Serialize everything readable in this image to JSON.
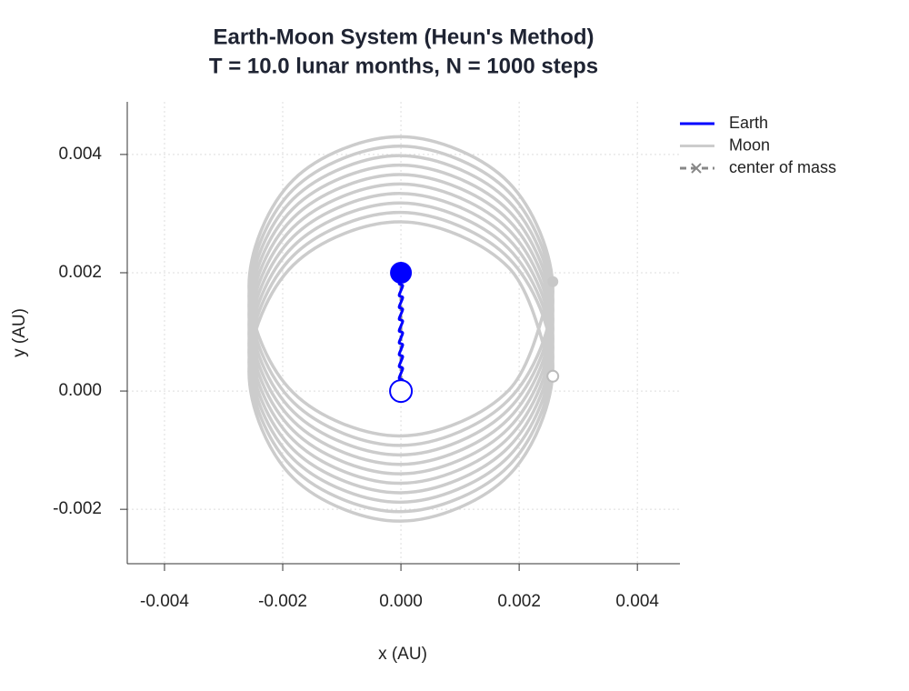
{
  "chart_data": {
    "type": "line",
    "title": "Earth-Moon System (Heun's Method)",
    "subtitle": "T = 10.0 lunar months, N = 1000 steps",
    "x_label": "x (AU)",
    "y_label": "y (AU)",
    "xlim": [
      -0.00463,
      0.00472
    ],
    "ylim": [
      -0.00292,
      0.00489
    ],
    "xticks": [
      -0.004,
      -0.002,
      {
        "value": 0,
        "label": "0.000"
      },
      0.002,
      0.004
    ],
    "yticks": [
      -0.002,
      {
        "value": 0,
        "label": "0.000"
      },
      0.002,
      0.004
    ],
    "grid": true,
    "legend": "upper right",
    "aspect": "equal",
    "series": [
      {
        "name": "Earth",
        "color": "#0000ff",
        "x": [
          0,
          -3e-05,
          0,
          3e-05,
          0,
          -3e-05,
          0,
          3e-05,
          0,
          -3e-05,
          0,
          3e-05,
          0,
          -3e-05,
          0,
          3e-05,
          0,
          -3e-05,
          0,
          3e-05,
          0,
          -3e-05,
          0,
          3e-05,
          0,
          -3e-05,
          0,
          3e-05,
          0,
          -3e-05,
          0,
          3e-05,
          0,
          -3e-05,
          0,
          3e-05,
          0,
          -3e-05,
          0,
          3e-05,
          0
        ],
        "y": [
          0,
          2e-05,
          0.0001,
          0.00018,
          0.0002,
          0.00022,
          0.0003,
          0.00038,
          0.0004,
          0.00042,
          0.0005,
          0.00058,
          0.0006,
          0.00062,
          0.0007,
          0.00078,
          0.0008,
          0.00082,
          0.0009,
          0.00098,
          0.001,
          0.00102,
          0.0011,
          0.00118,
          0.0012,
          0.00122,
          0.0013,
          0.00138,
          0.0014,
          0.00142,
          0.0015,
          0.00158,
          0.0016,
          0.00162,
          0.0017,
          0.00178,
          0.0018,
          0.00182,
          0.0019,
          0.00198,
          0.002
        ]
      },
      {
        "name": "Moon",
        "color": "#cccccc",
        "x": [
          0.00257,
          0.00182,
          0,
          -0.00182,
          -0.00257,
          -0.00182,
          0,
          0.00182,
          0.00257,
          0.00182,
          0,
          -0.00182,
          -0.00257,
          -0.00182,
          0,
          0.00182,
          0.00257,
          0.00182,
          0,
          -0.00182,
          -0.00257,
          -0.00182,
          0,
          0.00182,
          0.00257,
          0.00182,
          0,
          -0.00182,
          -0.00257,
          -0.00182,
          0,
          0.00182,
          0.00257,
          0.00182,
          0,
          -0.00182,
          -0.00257,
          -0.00182,
          0,
          0.00182,
          0.00257,
          0.00182,
          0,
          -0.00182,
          -0.00257,
          -0.00182,
          0,
          0.00182,
          0.00257,
          0.00182,
          0,
          -0.00182,
          -0.00257,
          -0.00182,
          0,
          0.00182,
          0.00257,
          0.00182,
          0,
          -0.00182,
          -0.00257,
          -0.00182,
          0,
          0.00182,
          0.00257,
          0.00182,
          0,
          -0.00182,
          -0.00257,
          -0.00182,
          0,
          0.00182,
          0.00257,
          0.00182,
          0,
          -0.00182,
          -0.00257,
          -0.00182,
          0,
          0.00182,
          0.00257
        ],
        "y": [
          0.00025,
          0.00209,
          0.00286,
          0.00213,
          0.00033,
          -0.00147,
          -0.0022,
          -0.00143,
          0.00041,
          0.00225,
          0.00302,
          0.00229,
          0.00049,
          -0.00131,
          -0.00204,
          -0.00127,
          0.00057,
          0.00241,
          0.00318,
          0.00245,
          0.00065,
          -0.00115,
          -0.00188,
          -0.00111,
          0.00073,
          0.00257,
          0.00334,
          0.00261,
          0.00081,
          -0.00099,
          -0.00172,
          -0.00095,
          0.00089,
          0.00273,
          0.0035,
          0.00277,
          0.00097,
          -0.00083,
          -0.00156,
          -0.00079,
          0.00105,
          0.00289,
          0.00366,
          0.00293,
          0.00113,
          -0.00067,
          -0.0014,
          -0.00063,
          0.00121,
          0.00305,
          0.00382,
          0.00309,
          0.00129,
          -0.00051,
          -0.00124,
          -0.00047,
          0.00137,
          0.00321,
          0.00398,
          0.00325,
          0.00145,
          -0.00035,
          -0.00108,
          -0.00031,
          0.00153,
          0.00337,
          0.00414,
          0.00341,
          0.00161,
          -0.00019,
          -0.00092,
          -0.00015,
          0.00169,
          0.00353,
          0.0043,
          0.00357,
          0.00177,
          -3e-05,
          -0.00076,
          1e-05,
          0.00185
        ]
      },
      {
        "name": "center of mass",
        "color": "#888888",
        "dashed": true,
        "x": [
          0,
          0
        ],
        "y": [
          0,
          0.00197
        ]
      }
    ]
  }
}
